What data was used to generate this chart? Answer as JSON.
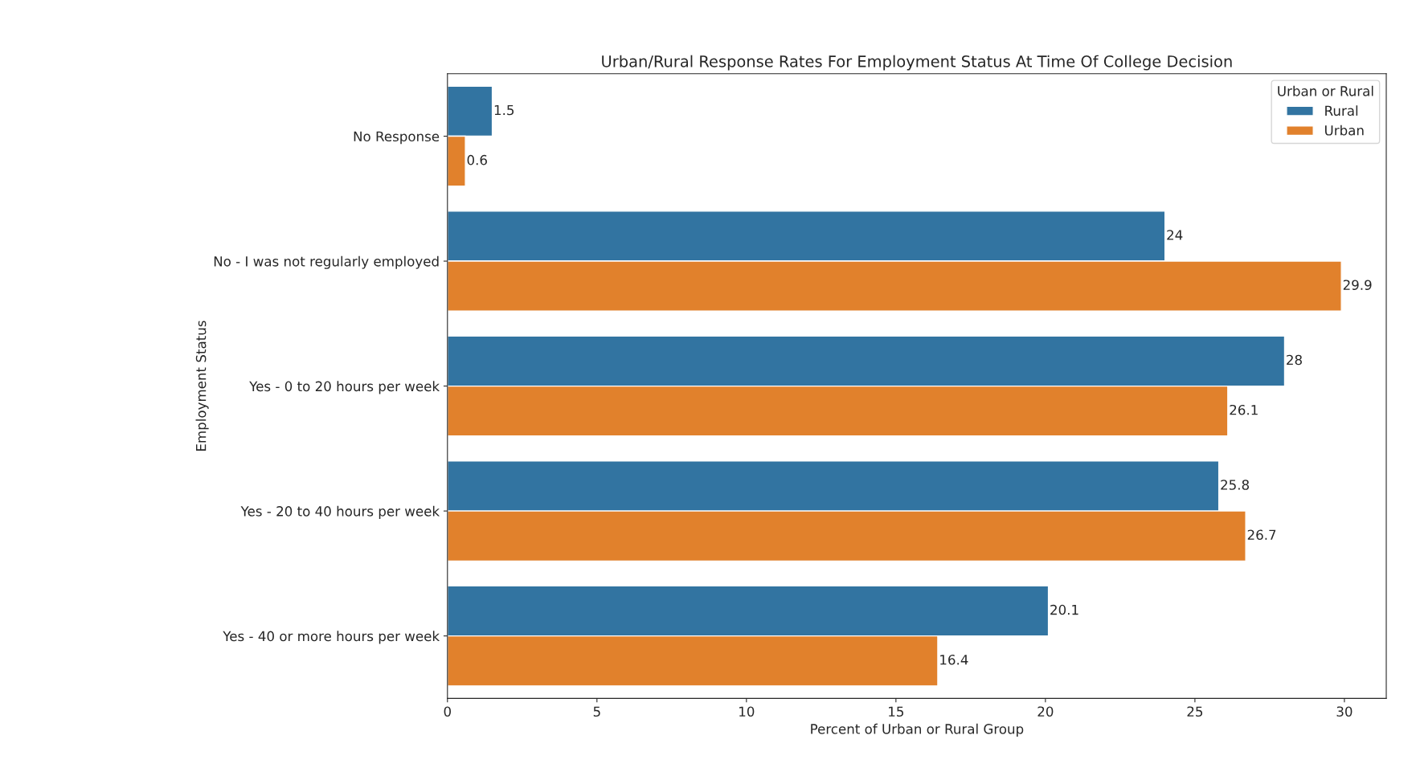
{
  "chart_data": {
    "type": "bar",
    "orientation": "horizontal",
    "title": "Urban/Rural Response Rates For Employment Status At Time Of College Decision",
    "xlabel": "Percent of Urban or Rural Group",
    "ylabel": "Employment Status",
    "legend_title": "Urban or Rural",
    "categories": [
      "No Response",
      "No - I was not regularly employed",
      "Yes - 0 to 20 hours per week",
      "Yes - 20 to 40 hours per week",
      "Yes - 40 or more hours per week"
    ],
    "series": [
      {
        "name": "Rural",
        "color": "#3274a1",
        "values": [
          1.5,
          24,
          28,
          25.8,
          20.1
        ]
      },
      {
        "name": "Urban",
        "color": "#e1812c",
        "values": [
          0.6,
          29.9,
          26.1,
          26.7,
          16.4
        ]
      }
    ],
    "xlim": [
      0,
      31.4
    ],
    "xticks": [
      0,
      5,
      10,
      15,
      20,
      25,
      30
    ],
    "grid": false,
    "legend": "top right",
    "data_labels": true
  }
}
